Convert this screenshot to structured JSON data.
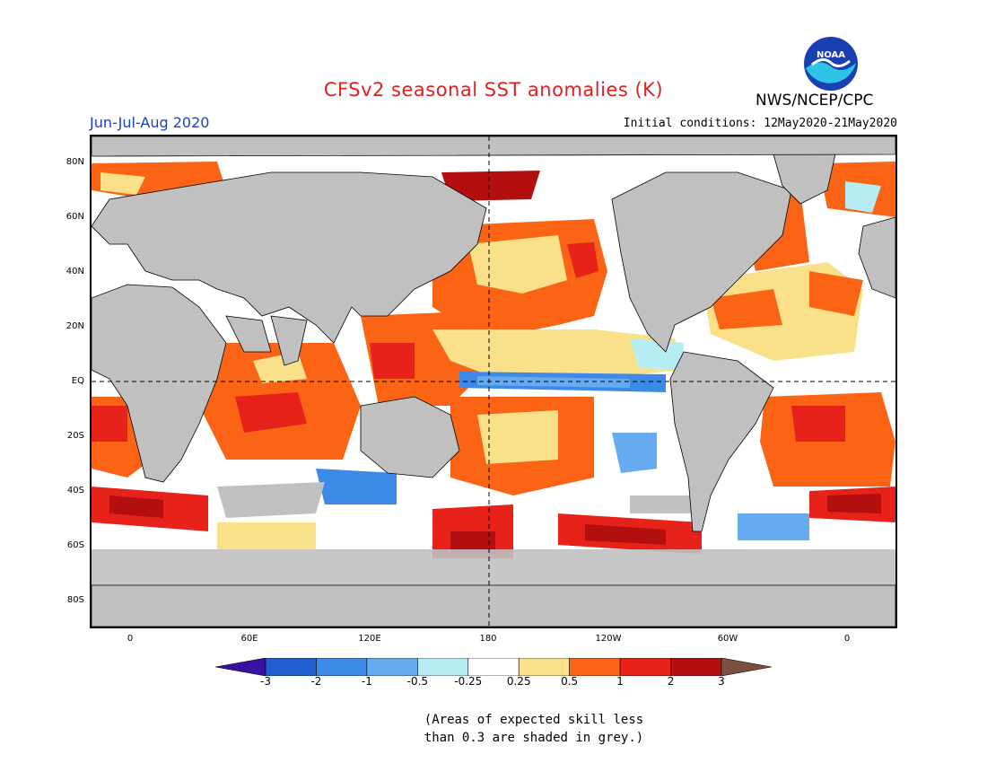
{
  "header": {
    "title": "CFSv2 seasonal SST anomalies (K)",
    "agency": "NWS/NCEP/CPC",
    "logo_text": "NOAA",
    "season": "Jun-Jul-Aug 2020",
    "initial_conditions": "Initial conditions: 12May2020-21May2020"
  },
  "axes": {
    "y_labels": [
      "80N",
      "60N",
      "40N",
      "20N",
      "EQ",
      "20S",
      "40S",
      "60S",
      "80S"
    ],
    "x_labels": [
      "0",
      "60E",
      "120E",
      "180",
      "120W",
      "60W",
      "0"
    ]
  },
  "colorbar": {
    "labels": [
      "-3",
      "-2",
      "-1",
      "-0.5",
      "-0.25",
      "0.25",
      "0.5",
      "1",
      "2",
      "3"
    ],
    "colors": [
      "#3a10a0",
      "#1f5fd0",
      "#3c8ae8",
      "#66aaf0",
      "#b6ecf4",
      "#ffffff",
      "#fbe08a",
      "#fa6414",
      "#e6221a",
      "#b40f0f",
      "#7a5040"
    ]
  },
  "note": {
    "line1": "(Areas of expected skill less",
    "line2": "than 0.3 are shaded in grey.)"
  },
  "colors": {
    "land": "#c0c0c0",
    "title": "#e02020",
    "season": "#1a3fd0"
  }
}
